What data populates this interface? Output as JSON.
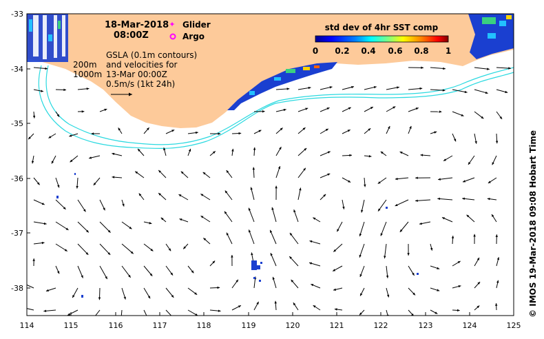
{
  "map": {
    "date": "18-Mar-2018",
    "time": "08:00Z",
    "legend": {
      "glider_label": "Glider",
      "argo_label": "Argo",
      "glider_color": "#ff00ff",
      "argo_color": "#ff00ff"
    },
    "annotation": {
      "line1": "GSLA (0.1m contours)",
      "line2": "and velocities for",
      "line3": "13-Mar 00:00Z",
      "line4": "0.5m/s (1kt 24h)"
    },
    "isobaths": [
      "200m",
      "1000m"
    ],
    "colorbar": {
      "title": "std dev of 4hr SST comp",
      "ticks": [
        "0",
        "0.2",
        "0.4",
        "0.6",
        "0.8",
        "1"
      ],
      "colors": [
        "#00008f",
        "#0000ff",
        "#0080ff",
        "#00ffff",
        "#80ff80",
        "#ffff00",
        "#ff8000",
        "#ff0000",
        "#800000"
      ]
    },
    "credit": "© IMOS 19-Mar-2018 09:08 Hobart Time",
    "colors": {
      "land": "#fdca9a",
      "isobath": "#2ad9e0",
      "arrow": "#000000"
    },
    "axes": {
      "lon_range": [
        114,
        125
      ],
      "lat_range": [
        -38.5,
        -33
      ],
      "x_ticks": [
        "114",
        "115",
        "116",
        "117",
        "118",
        "119",
        "120",
        "121",
        "122",
        "123",
        "124",
        "125"
      ],
      "y_ticks": [
        "-33",
        "-34",
        "-35",
        "-36",
        "-37",
        "-38"
      ]
    }
  }
}
